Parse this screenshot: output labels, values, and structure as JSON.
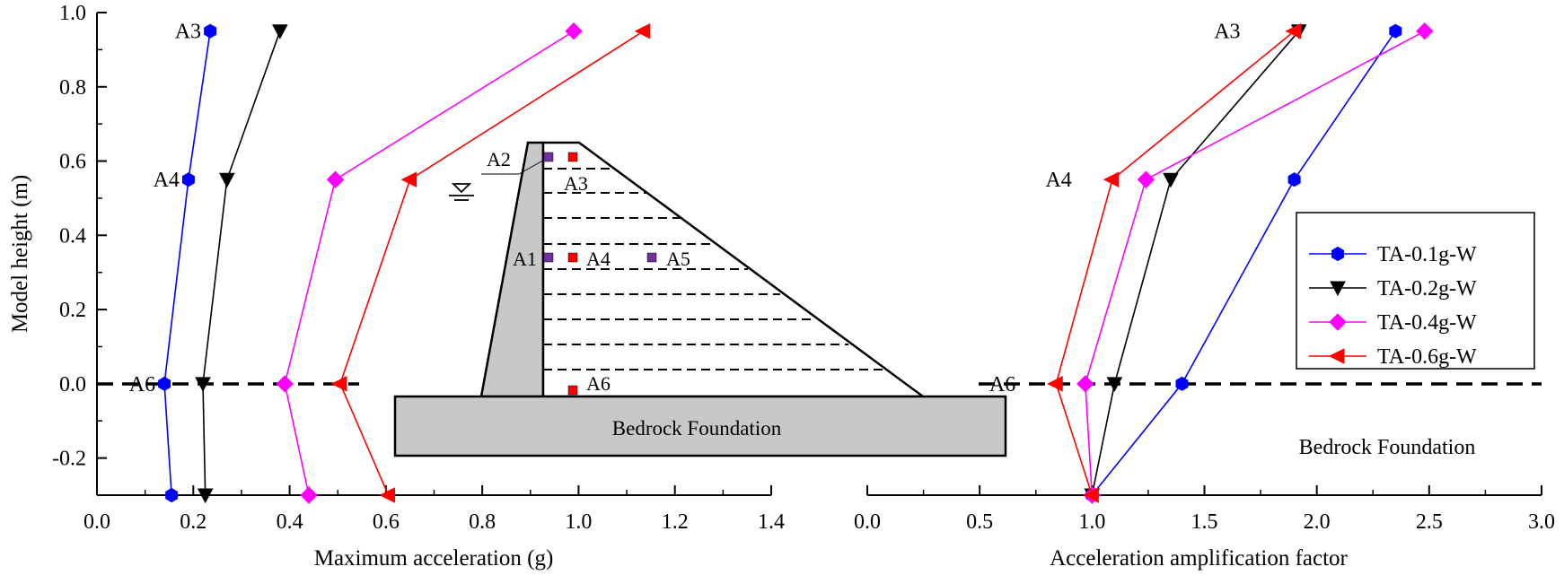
{
  "chart_data": [
    {
      "type": "line",
      "id": "left",
      "xlabel": "Maximum acceleration (g)",
      "ylabel": "Model height (m)",
      "xlim": [
        0.0,
        1.4
      ],
      "ylim": [
        -0.3,
        1.0
      ],
      "xticks": [
        "0.0",
        "0.2",
        "0.4",
        "0.6",
        "0.8",
        "1.0",
        "1.2",
        "1.4"
      ],
      "yticks": [
        "-0.2",
        "0.0",
        "0.2",
        "0.4",
        "0.6",
        "0.8",
        "1.0"
      ],
      "series": [
        {
          "name": "TA-0.1g-W",
          "color": "#0000ff",
          "marker": "hexagon",
          "points": [
            [
              0.155,
              -0.3
            ],
            [
              0.14,
              0.0
            ],
            [
              0.19,
              0.55
            ],
            [
              0.235,
              0.95
            ]
          ]
        },
        {
          "name": "TA-0.2g-W",
          "color": "#000000",
          "marker": "triangle-down",
          "points": [
            [
              0.225,
              -0.3
            ],
            [
              0.22,
              0.0
            ],
            [
              0.27,
              0.55
            ],
            [
              0.38,
              0.95
            ]
          ]
        },
        {
          "name": "TA-0.4g-W",
          "color": "#ff00ff",
          "marker": "diamond",
          "points": [
            [
              0.44,
              -0.3
            ],
            [
              0.39,
              0.0
            ],
            [
              0.495,
              0.55
            ],
            [
              0.99,
              0.95
            ]
          ]
        },
        {
          "name": "TA-0.6g-W",
          "color": "#ff0000",
          "marker": "triangle-left",
          "points": [
            [
              0.605,
              -0.3
            ],
            [
              0.505,
              0.0
            ],
            [
              0.65,
              0.55
            ],
            [
              1.135,
              0.95
            ]
          ]
        }
      ],
      "annotations": [
        {
          "text": "A3",
          "x": 0.235,
          "y": 0.95
        },
        {
          "text": "A4",
          "x": 0.19,
          "y": 0.55
        },
        {
          "text": "A6",
          "x": 0.14,
          "y": 0.0
        }
      ]
    },
    {
      "type": "line",
      "id": "right",
      "xlabel": "Acceleration amplification factor",
      "xlim": [
        0.0,
        3.0
      ],
      "ylim": [
        -0.3,
        1.0
      ],
      "xticks": [
        "0.0",
        "0.5",
        "1.0",
        "1.5",
        "2.0",
        "2.5",
        "3.0"
      ],
      "series": [
        {
          "name": "TA-0.1g-W",
          "color": "#0000ff",
          "marker": "hexagon",
          "points": [
            [
              1.0,
              -0.3
            ],
            [
              1.4,
              0.0
            ],
            [
              1.9,
              0.55
            ],
            [
              2.35,
              0.95
            ]
          ]
        },
        {
          "name": "TA-0.2g-W",
          "color": "#000000",
          "marker": "triangle-down",
          "points": [
            [
              1.0,
              -0.3
            ],
            [
              1.1,
              0.0
            ],
            [
              1.35,
              0.55
            ],
            [
              1.92,
              0.95
            ]
          ]
        },
        {
          "name": "TA-0.4g-W",
          "color": "#ff00ff",
          "marker": "diamond",
          "points": [
            [
              1.0,
              -0.3
            ],
            [
              0.97,
              0.0
            ],
            [
              1.24,
              0.55
            ],
            [
              2.48,
              0.95
            ]
          ]
        },
        {
          "name": "TA-0.6g-W",
          "color": "#ff0000",
          "marker": "triangle-left",
          "points": [
            [
              1.0,
              -0.3
            ],
            [
              0.84,
              0.0
            ],
            [
              1.09,
              0.55
            ],
            [
              1.9,
              0.95
            ]
          ]
        }
      ],
      "annotations": [
        {
          "text": "A3",
          "x": 1.7,
          "y": 0.95
        },
        {
          "text": "A4",
          "x": 0.95,
          "y": 0.55
        },
        {
          "text": "A6",
          "x": 0.7,
          "y": 0.0
        }
      ],
      "legend": {
        "position": "right",
        "entries": [
          "TA-0.1g-W",
          "TA-0.2g-W",
          "TA-0.4g-W",
          "TA-0.6g-W"
        ]
      },
      "label": "Bedrock Foundation"
    }
  ],
  "dam_diagram": {
    "foundation_label": "Bedrock Foundation",
    "sensors": [
      {
        "text": "A1",
        "color": "#7030a0"
      },
      {
        "text": "A2",
        "color": "#7030a0"
      },
      {
        "text": "A3",
        "color": "#ff0000"
      },
      {
        "text": "A4",
        "color": "#ff0000"
      },
      {
        "text": "A5",
        "color": "#7030a0"
      },
      {
        "text": "A6",
        "color": "#ff0000"
      }
    ],
    "core_color": "#c8c8c8"
  }
}
